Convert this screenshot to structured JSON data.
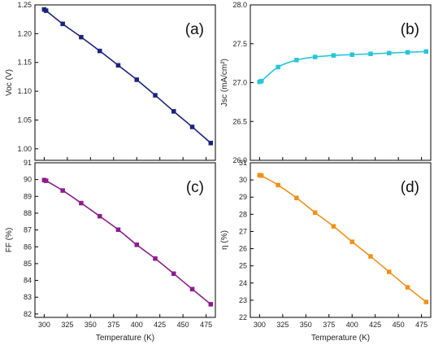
{
  "chart_data": [
    {
      "type": "line",
      "panel": "a",
      "panel_label": "(a)",
      "xlabel": "",
      "ylabel": "Voc (V)",
      "xlim": [
        290,
        485
      ],
      "ylim": [
        0.98,
        1.25
      ],
      "x_ticks": [
        "",
        "",
        "",
        "",
        "",
        "",
        "",
        ""
      ],
      "y_ticks": [
        "1.00",
        "1.05",
        "1.10",
        "1.15",
        "1.20",
        "1.25"
      ],
      "color": "#1a237e",
      "series": [
        {
          "x": [
            300,
            302,
            320,
            340,
            360,
            380,
            400,
            420,
            440,
            460,
            480
          ],
          "y": [
            1.242,
            1.24,
            1.217,
            1.194,
            1.17,
            1.145,
            1.12,
            1.093,
            1.065,
            1.038,
            1.01
          ]
        }
      ],
      "grid": false
    },
    {
      "type": "line",
      "panel": "b",
      "panel_label": "(b)",
      "xlabel": "",
      "ylabel": "Jsc (mA/cm²)",
      "xlim": [
        290,
        485
      ],
      "ylim": [
        26.0,
        28.0
      ],
      "x_ticks": [
        "",
        "",
        "",
        "",
        "",
        "",
        "",
        ""
      ],
      "y_ticks": [
        "26.0",
        "26.5",
        "27.0",
        "27.5",
        "28.0"
      ],
      "color": "#26c6da",
      "series": [
        {
          "x": [
            300,
            302,
            320,
            340,
            360,
            380,
            400,
            420,
            440,
            460,
            480
          ],
          "y": [
            27.01,
            27.02,
            27.2,
            27.29,
            27.33,
            27.35,
            27.36,
            27.37,
            27.38,
            27.39,
            27.4
          ]
        }
      ],
      "grid": false
    },
    {
      "type": "line",
      "panel": "c",
      "panel_label": "(c)",
      "xlabel": "Temperature (K)",
      "ylabel": "FF (%)",
      "xlim": [
        290,
        485
      ],
      "ylim": [
        81.8,
        91.0
      ],
      "x_ticks": [
        "300",
        "325",
        "350",
        "375",
        "400",
        "425",
        "450",
        "475"
      ],
      "y_ticks": [
        "82",
        "83",
        "84",
        "85",
        "86",
        "87",
        "88",
        "89",
        "90",
        "91"
      ],
      "color": "#8e1b8e",
      "series": [
        {
          "x": [
            300,
            302,
            320,
            340,
            360,
            380,
            400,
            420,
            440,
            460,
            480
          ],
          "y": [
            89.97,
            89.93,
            89.35,
            88.6,
            87.82,
            87.02,
            86.12,
            85.3,
            84.4,
            83.48,
            82.58
          ]
        }
      ],
      "grid": false
    },
    {
      "type": "line",
      "panel": "d",
      "panel_label": "(d)",
      "xlabel": "Temperature (K)",
      "ylabel": "η (%)",
      "xlim": [
        290,
        485
      ],
      "ylim": [
        22.0,
        31.0
      ],
      "x_ticks": [
        "300",
        "325",
        "350",
        "375",
        "400",
        "425",
        "450",
        "475"
      ],
      "y_ticks": [
        "22",
        "23",
        "24",
        "25",
        "26",
        "27",
        "28",
        "29",
        "30",
        "31"
      ],
      "color": "#f39017",
      "series": [
        {
          "x": [
            300,
            302,
            320,
            340,
            360,
            380,
            400,
            420,
            440,
            460,
            480
          ],
          "y": [
            30.28,
            30.25,
            29.7,
            28.95,
            28.1,
            27.3,
            26.4,
            25.55,
            24.65,
            23.75,
            22.9
          ]
        }
      ],
      "grid": false
    }
  ]
}
